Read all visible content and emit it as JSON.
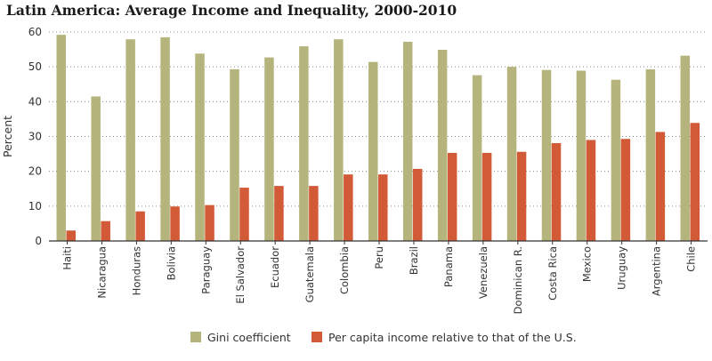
{
  "chart_data": {
    "type": "bar",
    "title": "Latin America: Average Income and Inequality, 2000-2010",
    "xlabel": "",
    "ylabel": "Percent",
    "ylim": [
      0,
      60
    ],
    "yticks": [
      0,
      10,
      20,
      30,
      40,
      50,
      60
    ],
    "grid": "horizontal dotted",
    "legend_position": "bottom",
    "categories": [
      "Haiti",
      "Nicaragua",
      "Honduras",
      "Bolivia",
      "Paraguay",
      "El Salvador",
      "Ecuador",
      "Guatemala",
      "Colombia",
      "Peru",
      "Brazil",
      "Panama",
      "Venezuela",
      "Dominican R.",
      "Costa Rica",
      "Mexico",
      "Uruguay",
      "Argentina",
      "Chile"
    ],
    "series": [
      {
        "name": "Gini coefficient",
        "color": "#b5b47c",
        "values": [
          59.2,
          41.5,
          57.9,
          58.5,
          53.8,
          49.3,
          52.7,
          55.9,
          57.9,
          51.4,
          57.2,
          54.9,
          47.6,
          50.0,
          49.1,
          48.9,
          46.3,
          49.3,
          53.2
        ]
      },
      {
        "name": "Per capita income relative to that of the U.S.",
        "color": "#d25a36",
        "values": [
          3.0,
          5.7,
          8.5,
          9.9,
          10.3,
          15.3,
          15.8,
          15.8,
          19.1,
          19.1,
          20.7,
          25.3,
          25.3,
          25.6,
          28.1,
          29.0,
          29.3,
          31.3,
          33.9
        ]
      }
    ]
  }
}
